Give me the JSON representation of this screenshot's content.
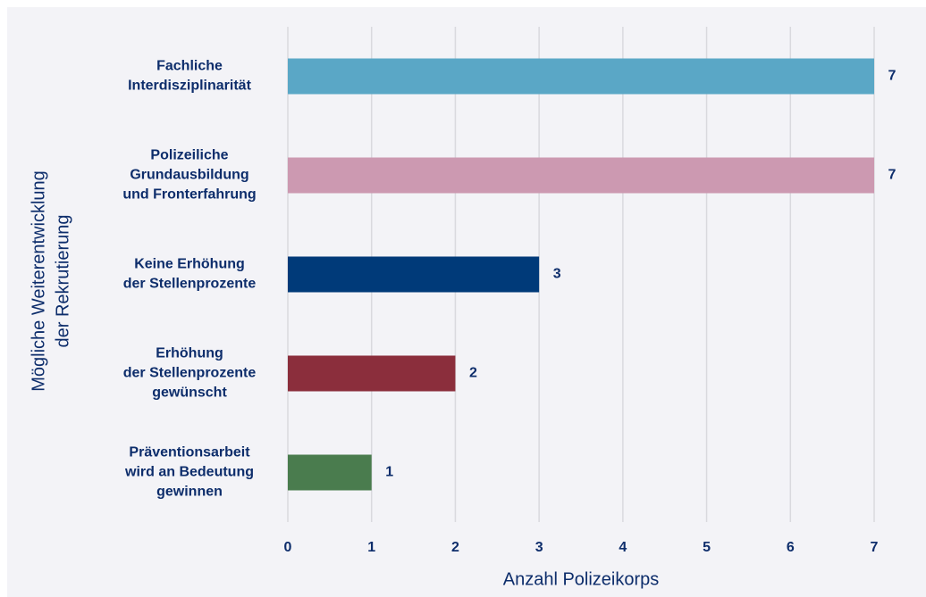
{
  "chart_data": {
    "type": "barh",
    "categories": [
      "Fachliche\nInterdisziplinarität",
      "Polizeiliche\nGrundausbildung\nund Fronterfahrung",
      "Keine Erhöhung\nder Stellenprozente",
      "Erhöhung\nder Stellenprozente\ngewünscht",
      "Präventionsarbeit\nwird an Bedeutung\ngewinnen"
    ],
    "values": [
      7,
      7,
      3,
      2,
      1
    ],
    "colors": [
      "#5aa7c6",
      "#cc99b1",
      "#003a79",
      "#8b2e3c",
      "#4a7c4e"
    ],
    "xlabel": "Anzahl Polizeikorps",
    "ylabel": "Mögliche Weiterentwicklung\nder Rekrutierung",
    "xlim": [
      0,
      7
    ],
    "xticks": [
      0,
      1,
      2,
      3,
      4,
      5,
      6,
      7
    ],
    "grid": true
  }
}
